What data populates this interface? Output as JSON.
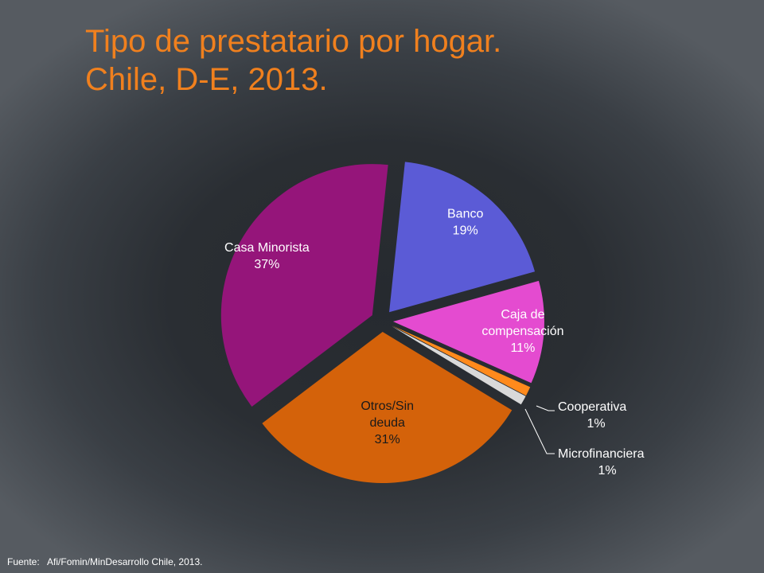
{
  "title": {
    "line1": "Tipo de prestatario por hogar.",
    "line2": "Chile, D-E, 2013."
  },
  "source": {
    "label": "Fuente:",
    "text": "Afi/Fomin/MinDesarrollo Chile, 2013."
  },
  "chart_data": {
    "type": "pie",
    "exploded": true,
    "slices": [
      {
        "name": "Banco",
        "label_lines": [
          "Banco",
          "19%"
        ],
        "value": 19,
        "color": "#5b5bd6",
        "label_color": "#ffffff"
      },
      {
        "name": "Caja de compensación",
        "label_lines": [
          "Caja de",
          "compensación",
          "11%"
        ],
        "value": 11,
        "color": "#e44bd0",
        "label_color": "#ffffff"
      },
      {
        "name": "Cooperativa",
        "label_lines": [
          "Cooperativa",
          "1%"
        ],
        "value": 1,
        "color": "#ff8a1c",
        "label_color": "#ffffff"
      },
      {
        "name": "Microfinanciera",
        "label_lines": [
          "Microfinanciera",
          "1%"
        ],
        "value": 1,
        "color": "#d9d9d9",
        "label_color": "#ffffff"
      },
      {
        "name": "Otros/Sin deuda",
        "label_lines": [
          "Otros/Sin",
          "deuda",
          "31%"
        ],
        "value": 31,
        "color": "#d4620a",
        "label_color": "#1a1a1a"
      },
      {
        "name": "Casa Minorista",
        "label_lines": [
          "Casa Minorista",
          "37%"
        ],
        "value": 37,
        "color": "#95157a",
        "label_color": "#ffffff"
      }
    ]
  }
}
